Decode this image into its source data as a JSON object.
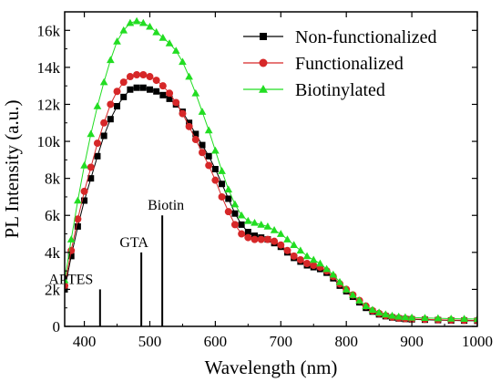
{
  "chart_data": {
    "type": "scatter",
    "title": "",
    "xlabel": "Wavelength (nm)",
    "ylabel": "PL Intensity (a.u.)",
    "xlim": [
      370,
      1000
    ],
    "ylim": [
      0,
      17000
    ],
    "xticks": [
      400,
      500,
      600,
      700,
      800,
      900,
      1000
    ],
    "xtick_labels": [
      "400",
      "500",
      "600",
      "700",
      "800",
      "900",
      "1000"
    ],
    "yticks": [
      0,
      2000,
      4000,
      6000,
      8000,
      10000,
      12000,
      14000,
      16000
    ],
    "ytick_labels": [
      "0",
      "2k",
      "4k",
      "6k",
      "8k",
      "10k",
      "12k",
      "14k",
      "16k"
    ],
    "grid": false,
    "legend_position": "top-right",
    "series": [
      {
        "name": "Non-functionalized",
        "color": "#000000",
        "marker": "square",
        "x": [
          370,
          380,
          390,
          400,
          410,
          420,
          430,
          440,
          450,
          460,
          470,
          480,
          490,
          500,
          510,
          520,
          530,
          540,
          550,
          560,
          570,
          580,
          590,
          600,
          610,
          620,
          630,
          640,
          650,
          660,
          670,
          680,
          690,
          700,
          710,
          720,
          730,
          740,
          750,
          760,
          770,
          780,
          790,
          800,
          810,
          820,
          830,
          840,
          850,
          860,
          870,
          880,
          890,
          900,
          920,
          940,
          960,
          980,
          1000
        ],
        "y": [
          2000,
          3800,
          5400,
          6800,
          8000,
          9200,
          10300,
          11200,
          11900,
          12400,
          12800,
          12900,
          12900,
          12800,
          12700,
          12500,
          12300,
          12000,
          11600,
          11000,
          10400,
          9800,
          9200,
          8500,
          7700,
          6900,
          6100,
          5500,
          5100,
          4900,
          4800,
          4700,
          4500,
          4300,
          4000,
          3700,
          3500,
          3300,
          3200,
          3100,
          2900,
          2600,
          2200,
          1900,
          1600,
          1300,
          1000,
          800,
          650,
          550,
          480,
          430,
          400,
          380,
          360,
          340,
          320,
          310,
          300
        ]
      },
      {
        "name": "Functionalized",
        "color": "#d62728",
        "marker": "circle",
        "x": [
          370,
          380,
          390,
          400,
          410,
          420,
          430,
          440,
          450,
          460,
          470,
          480,
          490,
          500,
          510,
          520,
          530,
          540,
          550,
          560,
          570,
          580,
          590,
          600,
          610,
          620,
          630,
          640,
          650,
          660,
          670,
          680,
          690,
          700,
          710,
          720,
          730,
          740,
          750,
          760,
          770,
          780,
          790,
          800,
          810,
          820,
          830,
          840,
          850,
          860,
          870,
          880,
          890,
          900,
          920,
          940,
          960,
          980,
          1000
        ],
        "y": [
          2200,
          4100,
          5800,
          7300,
          8600,
          9900,
          11000,
          12000,
          12700,
          13200,
          13500,
          13600,
          13600,
          13500,
          13300,
          13000,
          12600,
          12100,
          11500,
          10800,
          10100,
          9400,
          8700,
          7900,
          7000,
          6200,
          5500,
          5000,
          4800,
          4700,
          4700,
          4700,
          4600,
          4400,
          4100,
          3800,
          3600,
          3400,
          3300,
          3200,
          3000,
          2700,
          2300,
          2000,
          1700,
          1400,
          1100,
          850,
          700,
          580,
          500,
          450,
          420,
          400,
          380,
          360,
          340,
          330,
          320
        ]
      },
      {
        "name": "Biotinylated",
        "color": "#22dd22",
        "marker": "triangle",
        "x": [
          370,
          380,
          390,
          400,
          410,
          420,
          430,
          440,
          450,
          460,
          470,
          480,
          490,
          500,
          510,
          520,
          530,
          540,
          550,
          560,
          570,
          580,
          590,
          600,
          610,
          620,
          630,
          640,
          650,
          660,
          670,
          680,
          690,
          700,
          710,
          720,
          730,
          740,
          750,
          760,
          770,
          780,
          790,
          800,
          810,
          820,
          830,
          840,
          850,
          860,
          870,
          880,
          890,
          900,
          920,
          940,
          960,
          980,
          1000
        ],
        "y": [
          2500,
          4700,
          6800,
          8700,
          10400,
          11900,
          13200,
          14400,
          15400,
          16000,
          16400,
          16500,
          16400,
          16200,
          15900,
          15600,
          15300,
          14900,
          14300,
          13500,
          12600,
          11600,
          10600,
          9500,
          8400,
          7400,
          6600,
          6000,
          5700,
          5600,
          5500,
          5400,
          5200,
          5000,
          4700,
          4400,
          4100,
          3800,
          3600,
          3400,
          3100,
          2800,
          2400,
          2000,
          1700,
          1400,
          1100,
          900,
          750,
          650,
          580,
          530,
          500,
          480,
          460,
          440,
          420,
          410,
          400
        ]
      }
    ],
    "annotations": [
      {
        "label": "APTES",
        "x": 424,
        "y_top": 2000
      },
      {
        "label": "GTA",
        "x": 487,
        "y_top": 4000
      },
      {
        "label": "Biotin",
        "x": 519,
        "y_top": 6000
      }
    ]
  }
}
